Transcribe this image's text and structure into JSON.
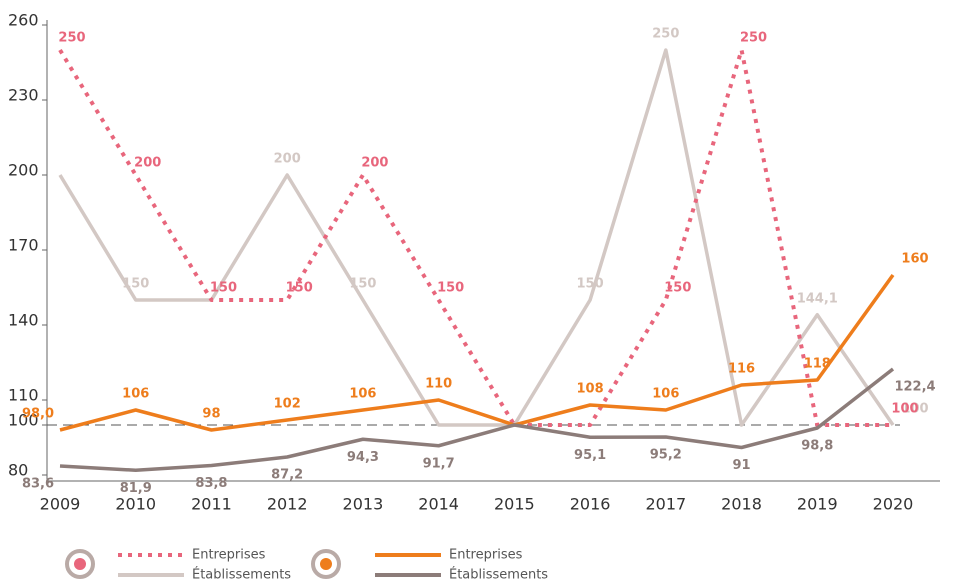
{
  "chart_data": {
    "type": "line",
    "categories": [
      "2009",
      "2010",
      "2011",
      "2012",
      "2013",
      "2014",
      "2015",
      "2016",
      "2017",
      "2018",
      "2019",
      "2020"
    ],
    "ylim": [
      80,
      260
    ],
    "yticks": [
      80,
      100,
      110,
      140,
      170,
      200,
      230,
      260
    ],
    "reference_line": 100,
    "series": [
      {
        "name": "Entreprises",
        "color": "#e8667c",
        "dashed": true,
        "values": [
          250,
          200,
          150,
          150,
          200,
          150,
          100,
          100,
          150,
          250,
          100,
          100
        ],
        "value_labels": [
          "250",
          "200",
          "150",
          "150",
          "200",
          "150",
          null,
          null,
          "150",
          "250",
          null,
          "100"
        ]
      },
      {
        "name": "Établissements",
        "color": "#d3c8c4",
        "dashed": false,
        "values": [
          200,
          150,
          150,
          200,
          150,
          100,
          100,
          150,
          250,
          100,
          144.1,
          100
        ],
        "value_labels": [
          null,
          "150",
          null,
          "200",
          "150",
          null,
          null,
          "150",
          "250",
          null,
          "144,1",
          "100"
        ]
      },
      {
        "name": "Entreprises",
        "color": "#ee7d1c",
        "dashed": false,
        "values": [
          98.0,
          106,
          98,
          102,
          106,
          110,
          100,
          108,
          106,
          116,
          118,
          160
        ],
        "value_labels": [
          "98,0",
          "106",
          "98",
          "102",
          "106",
          "110",
          null,
          "108",
          "106",
          "116",
          "118",
          "160"
        ]
      },
      {
        "name": "Établissements",
        "color": "#8c7c79",
        "dashed": false,
        "values": [
          83.6,
          81.9,
          83.8,
          87.2,
          94.3,
          91.7,
          100,
          95.1,
          95.2,
          91,
          98.8,
          122.4
        ],
        "value_labels": [
          "83,6",
          "81,9",
          "83,8",
          "87,2",
          "94,3",
          "91,7",
          null,
          "95,1",
          "95,2",
          "91",
          "98,8",
          "122,4"
        ]
      }
    ]
  }
}
